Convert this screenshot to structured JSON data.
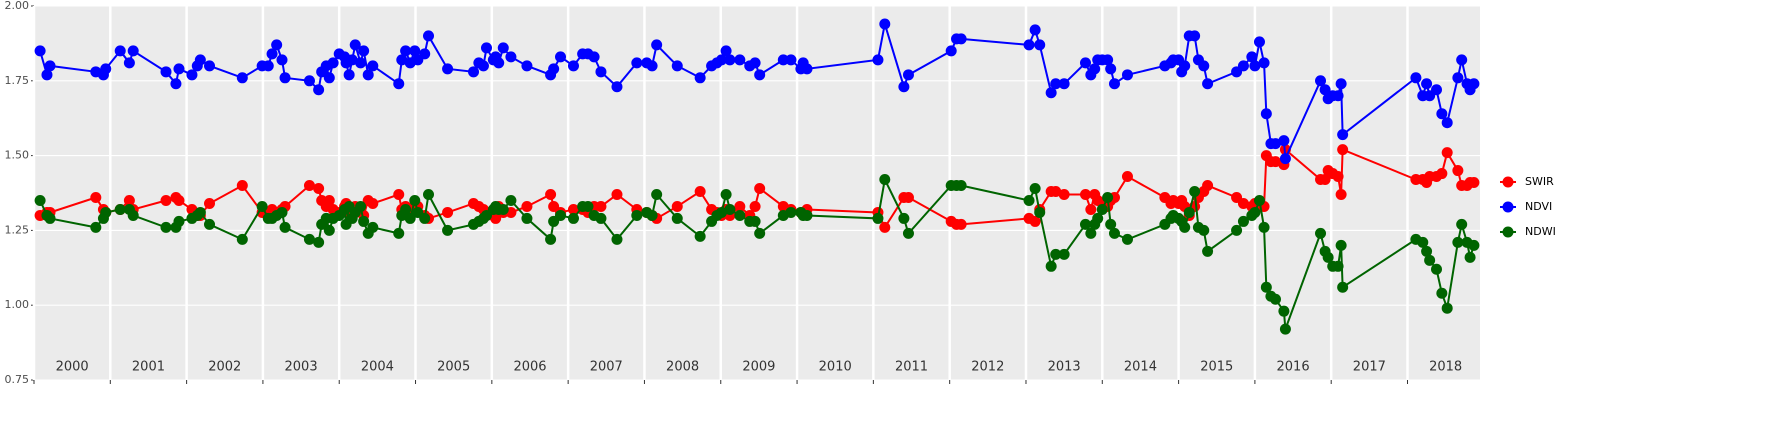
{
  "chart_data": {
    "type": "line",
    "x": [
      2000.08,
      2000.17,
      2000.21,
      2000.81,
      2000.91,
      2000.94,
      2001.13,
      2001.25,
      2001.3,
      2001.73,
      2001.86,
      2001.9,
      2002.07,
      2002.14,
      2002.18,
      2002.3,
      2002.73,
      2002.99,
      2003.07,
      2003.12,
      2003.18,
      2003.25,
      2003.29,
      2003.61,
      2003.73,
      2003.77,
      2003.83,
      2003.87,
      2003.92,
      2004.0,
      2004.07,
      2004.09,
      2004.13,
      2004.17,
      2004.21,
      2004.28,
      2004.32,
      2004.38,
      2004.44,
      2004.78,
      2004.82,
      2004.87,
      2004.93,
      2004.99,
      2005.03,
      2005.12,
      2005.17,
      2005.42,
      2005.76,
      2005.83,
      2005.89,
      2005.93,
      2006.02,
      2006.05,
      2006.09,
      2006.15,
      2006.25,
      2006.46,
      2006.77,
      2006.81,
      2006.9,
      2007.07,
      2007.19,
      2007.26,
      2007.34,
      2007.43,
      2007.64,
      2007.9,
      2008.03,
      2008.1,
      2008.16,
      2008.43,
      2008.73,
      2008.88,
      2008.95,
      2009.01,
      2009.07,
      2009.12,
      2009.25,
      2009.38,
      2009.45,
      2009.51,
      2009.82,
      2009.92,
      2010.05,
      2010.08,
      2010.13,
      2011.06,
      2011.15,
      2011.4,
      2011.46,
      2012.02,
      2012.09,
      2012.15,
      2013.04,
      2013.12,
      2013.18,
      2013.33,
      2013.39,
      2013.5,
      2013.78,
      2013.85,
      2013.9,
      2013.94,
      2014.0,
      2014.07,
      2014.11,
      2014.16,
      2014.33,
      2014.82,
      2014.9,
      2014.93,
      2015.0,
      2015.04,
      2015.08,
      2015.14,
      2015.21,
      2015.26,
      2015.33,
      2015.38,
      2015.76,
      2015.85,
      2015.96,
      2016.0,
      2016.06,
      2016.12,
      2016.15,
      2016.21,
      2016.27,
      2016.38,
      2016.4,
      2016.86,
      2016.92,
      2016.96,
      2017.02,
      2017.09,
      2017.13,
      2017.15,
      2018.11,
      2018.2,
      2018.25,
      2018.29,
      2018.38,
      2018.45,
      2018.52,
      2018.66,
      2018.71,
      2018.78,
      2018.82,
      2018.87
    ],
    "series": [
      {
        "name": "SWIR",
        "color": "#ff0000",
        "values": [
          1.3,
          1.31,
          1.31,
          1.36,
          1.32,
          1.31,
          1.32,
          1.35,
          1.32,
          1.35,
          1.36,
          1.35,
          1.32,
          1.3,
          1.3,
          1.34,
          1.4,
          1.31,
          1.3,
          1.32,
          1.31,
          1.32,
          1.33,
          1.4,
          1.39,
          1.35,
          1.33,
          1.35,
          1.32,
          1.31,
          1.33,
          1.34,
          1.31,
          1.32,
          1.33,
          1.32,
          1.3,
          1.35,
          1.34,
          1.37,
          1.32,
          1.33,
          1.31,
          1.33,
          1.33,
          1.3,
          1.29,
          1.31,
          1.34,
          1.33,
          1.32,
          1.3,
          1.3,
          1.29,
          1.33,
          1.31,
          1.31,
          1.33,
          1.37,
          1.33,
          1.31,
          1.32,
          1.32,
          1.31,
          1.33,
          1.33,
          1.37,
          1.32,
          1.31,
          1.3,
          1.29,
          1.33,
          1.38,
          1.32,
          1.31,
          1.3,
          1.32,
          1.3,
          1.33,
          1.3,
          1.33,
          1.39,
          1.33,
          1.32,
          1.31,
          1.31,
          1.32,
          1.31,
          1.26,
          1.36,
          1.36,
          1.28,
          1.27,
          1.27,
          1.29,
          1.28,
          1.32,
          1.38,
          1.38,
          1.37,
          1.37,
          1.32,
          1.37,
          1.35,
          1.34,
          1.33,
          1.35,
          1.36,
          1.43,
          1.36,
          1.34,
          1.35,
          1.34,
          1.35,
          1.33,
          1.3,
          1.33,
          1.36,
          1.38,
          1.4,
          1.36,
          1.34,
          1.33,
          1.34,
          1.33,
          1.33,
          1.5,
          1.48,
          1.48,
          1.47,
          1.52,
          1.42,
          1.42,
          1.45,
          1.44,
          1.43,
          1.37,
          1.52,
          1.42,
          1.42,
          1.41,
          1.43,
          1.43,
          1.44,
          1.51,
          1.45,
          1.4,
          1.4,
          1.41,
          1.41
        ]
      },
      {
        "name": "NDVI",
        "color": "#0000ff",
        "values": [
          1.85,
          1.77,
          1.8,
          1.78,
          1.77,
          1.79,
          1.85,
          1.81,
          1.85,
          1.78,
          1.74,
          1.79,
          1.77,
          1.8,
          1.82,
          1.8,
          1.76,
          1.8,
          1.8,
          1.84,
          1.87,
          1.82,
          1.76,
          1.75,
          1.72,
          1.78,
          1.8,
          1.76,
          1.81,
          1.84,
          1.83,
          1.81,
          1.77,
          1.82,
          1.87,
          1.81,
          1.85,
          1.77,
          1.8,
          1.74,
          1.82,
          1.85,
          1.81,
          1.85,
          1.82,
          1.84,
          1.9,
          1.79,
          1.78,
          1.81,
          1.8,
          1.86,
          1.82,
          1.83,
          1.81,
          1.86,
          1.83,
          1.8,
          1.77,
          1.79,
          1.83,
          1.8,
          1.84,
          1.84,
          1.83,
          1.78,
          1.73,
          1.81,
          1.81,
          1.8,
          1.87,
          1.8,
          1.76,
          1.8,
          1.81,
          1.82,
          1.85,
          1.82,
          1.82,
          1.8,
          1.81,
          1.77,
          1.82,
          1.82,
          1.79,
          1.81,
          1.79,
          1.82,
          1.94,
          1.73,
          1.77,
          1.85,
          1.89,
          1.89,
          1.87,
          1.92,
          1.87,
          1.71,
          1.74,
          1.74,
          1.81,
          1.77,
          1.79,
          1.82,
          1.82,
          1.82,
          1.79,
          1.74,
          1.77,
          1.8,
          1.81,
          1.82,
          1.82,
          1.78,
          1.8,
          1.9,
          1.9,
          1.82,
          1.8,
          1.74,
          1.78,
          1.8,
          1.83,
          1.8,
          1.88,
          1.81,
          1.64,
          1.54,
          1.54,
          1.55,
          1.49,
          1.75,
          1.72,
          1.69,
          1.7,
          1.7,
          1.74,
          1.57,
          1.76,
          1.7,
          1.74,
          1.7,
          1.72,
          1.64,
          1.61,
          1.76,
          1.82,
          1.74,
          1.72,
          1.74
        ]
      },
      {
        "name": "NDWI",
        "color": "#006400",
        "values": [
          1.35,
          1.3,
          1.29,
          1.26,
          1.29,
          1.31,
          1.32,
          1.32,
          1.3,
          1.26,
          1.26,
          1.28,
          1.29,
          1.3,
          1.31,
          1.27,
          1.22,
          1.33,
          1.29,
          1.29,
          1.3,
          1.31,
          1.26,
          1.22,
          1.21,
          1.27,
          1.29,
          1.25,
          1.29,
          1.3,
          1.32,
          1.27,
          1.33,
          1.29,
          1.31,
          1.33,
          1.28,
          1.24,
          1.26,
          1.24,
          1.3,
          1.32,
          1.29,
          1.35,
          1.31,
          1.29,
          1.37,
          1.25,
          1.27,
          1.28,
          1.29,
          1.3,
          1.32,
          1.33,
          1.32,
          1.32,
          1.35,
          1.29,
          1.22,
          1.28,
          1.3,
          1.29,
          1.33,
          1.33,
          1.3,
          1.29,
          1.22,
          1.3,
          1.31,
          1.3,
          1.37,
          1.29,
          1.23,
          1.28,
          1.3,
          1.31,
          1.37,
          1.32,
          1.3,
          1.28,
          1.28,
          1.24,
          1.3,
          1.31,
          1.31,
          1.3,
          1.3,
          1.29,
          1.42,
          1.29,
          1.24,
          1.4,
          1.4,
          1.4,
          1.35,
          1.39,
          1.31,
          1.13,
          1.17,
          1.17,
          1.27,
          1.24,
          1.27,
          1.29,
          1.32,
          1.36,
          1.27,
          1.24,
          1.22,
          1.27,
          1.29,
          1.3,
          1.29,
          1.28,
          1.26,
          1.31,
          1.38,
          1.26,
          1.25,
          1.18,
          1.25,
          1.28,
          1.3,
          1.31,
          1.35,
          1.26,
          1.06,
          1.03,
          1.02,
          0.98,
          0.92,
          1.24,
          1.18,
          1.16,
          1.13,
          1.13,
          1.2,
          1.06,
          1.22,
          1.21,
          1.18,
          1.15,
          1.12,
          1.04,
          0.99,
          1.21,
          1.27,
          1.21,
          1.16,
          1.2
        ]
      }
    ],
    "xlim": [
      2000,
      2018.95
    ],
    "xticks": [
      2000,
      2001,
      2002,
      2003,
      2004,
      2005,
      2006,
      2007,
      2008,
      2009,
      2010,
      2011,
      2012,
      2013,
      2014,
      2015,
      2016,
      2017,
      2018
    ],
    "ylim": [
      0.75,
      2.0
    ],
    "yticks": [
      {
        "value": 0.75,
        "label": "0.75"
      },
      {
        "value": 1.0,
        "label": "1.00"
      },
      {
        "value": 1.25,
        "label": "1.25"
      },
      {
        "value": 1.5,
        "label": "1.50"
      },
      {
        "value": 1.75,
        "label": "1.75"
      },
      {
        "value": 2.0,
        "label": "2.00"
      }
    ],
    "grid": true,
    "legend": "right"
  }
}
